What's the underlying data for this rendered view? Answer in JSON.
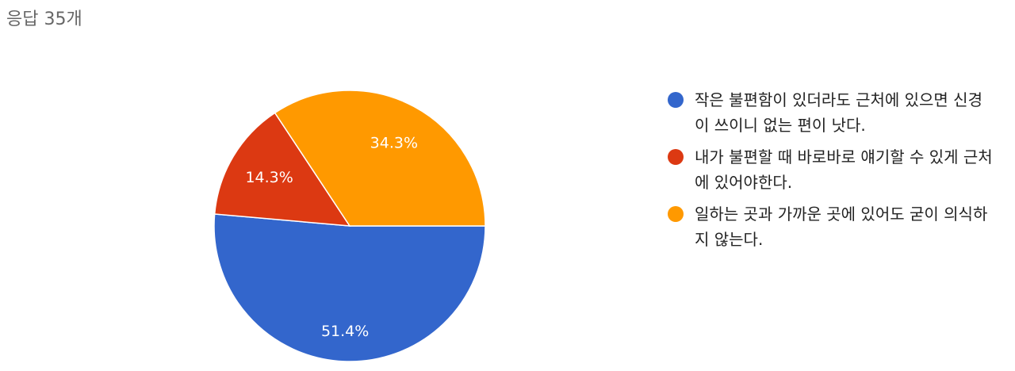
{
  "chart_data": {
    "type": "pie",
    "title": "응답 35개",
    "categories": [
      "작은 불편함이 있더라도 근처에 있으면 신경이 쓰이니 없는 편이 낫다.",
      "내가 불편할 때 바로바로 얘기할 수 있게 근처에 있어야한다.",
      "일하는 곳과 가까운 곳에 있어도 굳이 의식하지 않는다."
    ],
    "values": [
      51.4,
      14.3,
      34.3
    ],
    "value_labels": [
      "51.4%",
      "14.3%",
      "34.3%"
    ],
    "colors": [
      "#3366cc",
      "#dc3912",
      "#ff9900"
    ],
    "legend": "right"
  }
}
